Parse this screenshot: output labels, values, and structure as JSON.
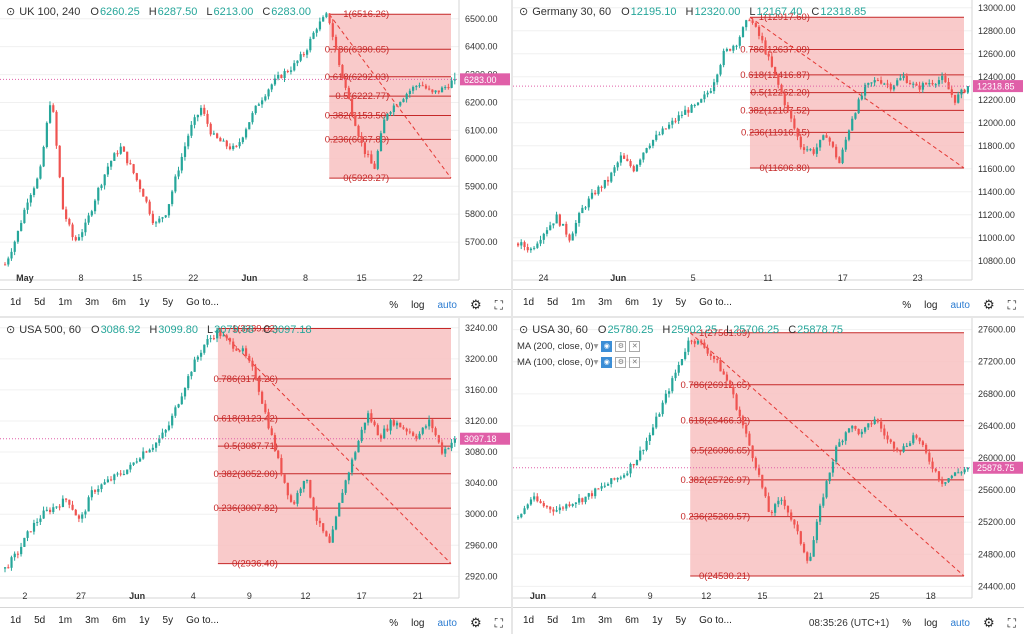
{
  "panels": [
    {
      "id": "uk",
      "title": "UK 100, 240",
      "ohlc": {
        "o": "6260.25",
        "h": "6287.50",
        "l": "6213.00",
        "c": "6283.00"
      },
      "indicators": [],
      "time_ranges": [
        "1d",
        "5d",
        "1m",
        "3m",
        "6m",
        "1y",
        "5y",
        "Go to..."
      ],
      "right_controls": [
        "%",
        "log",
        "auto"
      ],
      "clock": ""
    },
    {
      "id": "de",
      "title": "Germany 30, 60",
      "ohlc": {
        "o": "12195.10",
        "h": "12320.00",
        "l": "12167.40",
        "c": "12318.85"
      },
      "indicators": [],
      "time_ranges": [
        "1d",
        "5d",
        "1m",
        "3m",
        "6m",
        "1y",
        "5y",
        "Go to..."
      ],
      "right_controls": [
        "%",
        "log",
        "auto"
      ],
      "clock": ""
    },
    {
      "id": "us500",
      "title": "USA 500, 60",
      "ohlc": {
        "o": "3086.92",
        "h": "3099.80",
        "l": "3079.68",
        "c": "3097.18"
      },
      "indicators": [],
      "time_ranges": [
        "1d",
        "5d",
        "1m",
        "3m",
        "6m",
        "1y",
        "5y",
        "Go to..."
      ],
      "right_controls": [
        "%",
        "log",
        "auto"
      ],
      "clock": ""
    },
    {
      "id": "us30",
      "title": "USA 30, 60",
      "ohlc": {
        "o": "25780.25",
        "h": "25902.25",
        "l": "25706.25",
        "c": "25878.75"
      },
      "indicators": [
        "MA (200, close, 0)",
        "MA (100, close, 0)"
      ],
      "time_ranges": [
        "1d",
        "5d",
        "1m",
        "3m",
        "6m",
        "1y",
        "5y",
        "Go to..."
      ],
      "right_controls": [
        "08:35:26 (UTC+1)",
        "%",
        "log",
        "auto"
      ],
      "clock": "08:35:26 (UTC+1)"
    }
  ],
  "colors": {
    "up": "#26a69a",
    "down": "#ef5350",
    "fib_fill": "#f8c1c1",
    "fib_line": "#c62828",
    "price_tag": "#e05fa8",
    "axis_text": "#333333"
  },
  "chart_data": [
    {
      "type": "candlestick",
      "title": "UK 100, 240",
      "ylim": [
        5600,
        6560
      ],
      "y_ticks": [
        "5700.00",
        "5800.00",
        "5900.00",
        "6000.00",
        "6100.00",
        "6200.00",
        "6300.00",
        "6400.00",
        "6500.00"
      ],
      "x_ticks": [
        "May",
        "8",
        "15",
        "22",
        "Jun",
        "8",
        "15",
        "22"
      ],
      "path": [
        5620,
        5720,
        5860,
        5940,
        6230,
        5820,
        5700,
        5760,
        5880,
        5980,
        6040,
        5960,
        5870,
        5760,
        5810,
        5960,
        6100,
        6180,
        6080,
        6050,
        6030,
        6120,
        6200,
        6260,
        6300,
        6330,
        6380,
        6470,
        6516,
        6330,
        6180,
        6040,
        5960,
        6160,
        6200,
        6240,
        6270,
        6230,
        6250,
        6283
      ],
      "last_price": "6283.00",
      "last_value": 6283,
      "fib": {
        "x_start_frac_idx": 28,
        "levels": [
          {
            "label": "1(6516.26)",
            "value": 6516.26
          },
          {
            "label": "0.786(6390.65)",
            "value": 6390.65
          },
          {
            "label": "0.618(6292.03)",
            "value": 6292.03
          },
          {
            "label": "0.5(6222.77)",
            "value": 6222.77
          },
          {
            "label": "0.382(6153.50)",
            "value": 6153.5
          },
          {
            "label": "0.236(6067.80)",
            "value": 6067.8
          },
          {
            "label": "0(5929.27)",
            "value": 5929.27
          }
        ]
      }
    },
    {
      "type": "candlestick",
      "title": "Germany 30, 60",
      "ylim": [
        10720,
        13050
      ],
      "y_ticks": [
        "10800.00",
        "11000.00",
        "11200.00",
        "11400.00",
        "11600.00",
        "11800.00",
        "12000.00",
        "12200.00",
        "12400.00",
        "12600.00",
        "12800.00",
        "13000.00"
      ],
      "x_ticks": [
        "24",
        "Jun",
        "5",
        "11",
        "17",
        "23"
      ],
      "path": [
        10950,
        10900,
        11050,
        11180,
        11000,
        11250,
        11400,
        11500,
        11700,
        11600,
        11800,
        11900,
        12000,
        12100,
        12150,
        12300,
        12600,
        12700,
        12917,
        12700,
        12400,
        12100,
        11800,
        11750,
        11900,
        11650,
        12050,
        12300,
        12380,
        12320,
        12400,
        12300,
        12350,
        12380,
        12200,
        12318
      ],
      "last_price": "12318.85",
      "last_value": 12318.85,
      "fib": {
        "x_start_frac_idx": 18,
        "levels": [
          {
            "label": "1(12917.60)",
            "value": 12917.6
          },
          {
            "label": "0.786(12637.09)",
            "value": 12637.09
          },
          {
            "label": "0.618(12416.87)",
            "value": 12416.87
          },
          {
            "label": "0.5(12262.20)",
            "value": 12262.2
          },
          {
            "label": "0.382(12107.52)",
            "value": 12107.52
          },
          {
            "label": "0.236(11916.15)",
            "value": 11916.15
          },
          {
            "label": "0(11606.80)",
            "value": 11606.8
          }
        ]
      }
    },
    {
      "type": "candlestick",
      "title": "USA 500, 60",
      "ylim": [
        2905,
        3250
      ],
      "y_ticks": [
        "2920.00",
        "2960.00",
        "3000.00",
        "3040.00",
        "3080.00",
        "3120.00",
        "3160.00",
        "3200.00",
        "3240.00"
      ],
      "x_ticks": [
        "2",
        "27",
        "Jun",
        "4",
        "9",
        "12",
        "17",
        "21"
      ],
      "path": [
        2930,
        2950,
        2980,
        3000,
        3010,
        3020,
        2990,
        3030,
        3040,
        3050,
        3060,
        3080,
        3090,
        3110,
        3150,
        3190,
        3220,
        3235,
        3220,
        3210,
        3180,
        3120,
        3060,
        3010,
        3050,
        2990,
        2960,
        3030,
        3080,
        3130,
        3100,
        3120,
        3110,
        3100,
        3120,
        3080,
        3097
      ],
      "last_price": "3097.18",
      "last_value": 3097.18,
      "fib": {
        "x_start_frac_idx": 17,
        "levels": [
          {
            "label": "1(3239.02)",
            "value": 3239.02
          },
          {
            "label": "0.786(3174.26)",
            "value": 3174.26
          },
          {
            "label": "0.618(3123.42)",
            "value": 3123.42
          },
          {
            "label": "0.5(3087.71)",
            "value": 3087.71
          },
          {
            "label": "0.382(3052.00)",
            "value": 3052.0
          },
          {
            "label": "0.236(3007.82)",
            "value": 3007.82
          },
          {
            "label": "0(2936.40)",
            "value": 2936.4
          }
        ]
      }
    },
    {
      "type": "candlestick",
      "title": "USA 30, 60",
      "ylim": [
        24380,
        27720
      ],
      "y_ticks": [
        "24400.00",
        "24800.00",
        "25200.00",
        "25600.00",
        "26000.00",
        "26400.00",
        "26800.00",
        "27200.00",
        "27600.00"
      ],
      "x_ticks": [
        "Jun",
        "4",
        "9",
        "12",
        "15",
        "21",
        "25",
        "18"
      ],
      "path": [
        25250,
        25500,
        25400,
        25350,
        25450,
        25500,
        25600,
        25700,
        25800,
        26000,
        26300,
        26700,
        27100,
        27500,
        27400,
        27200,
        26900,
        26400,
        25900,
        25300,
        25500,
        25100,
        24700,
        25500,
        26100,
        26400,
        26300,
        26500,
        26200,
        26100,
        26300,
        26000,
        25700,
        25800,
        25878
      ],
      "last_price": "25878.75",
      "last_value": 25878.75,
      "fib": {
        "x_start_frac_idx": 13,
        "levels": [
          {
            "label": "1(27561.09)",
            "value": 27561.09
          },
          {
            "label": "0.786(26912.65)",
            "value": 26912.65
          },
          {
            "label": "0.618(26466.32)",
            "value": 26466.32
          },
          {
            "label": "0.5(26096.65)",
            "value": 26096.65
          },
          {
            "label": "0.382(25726.97)",
            "value": 25726.97
          },
          {
            "label": "0.236(25269.57)",
            "value": 25269.57
          },
          {
            "label": "0(24530.21)",
            "value": 24530.21
          }
        ]
      }
    }
  ]
}
